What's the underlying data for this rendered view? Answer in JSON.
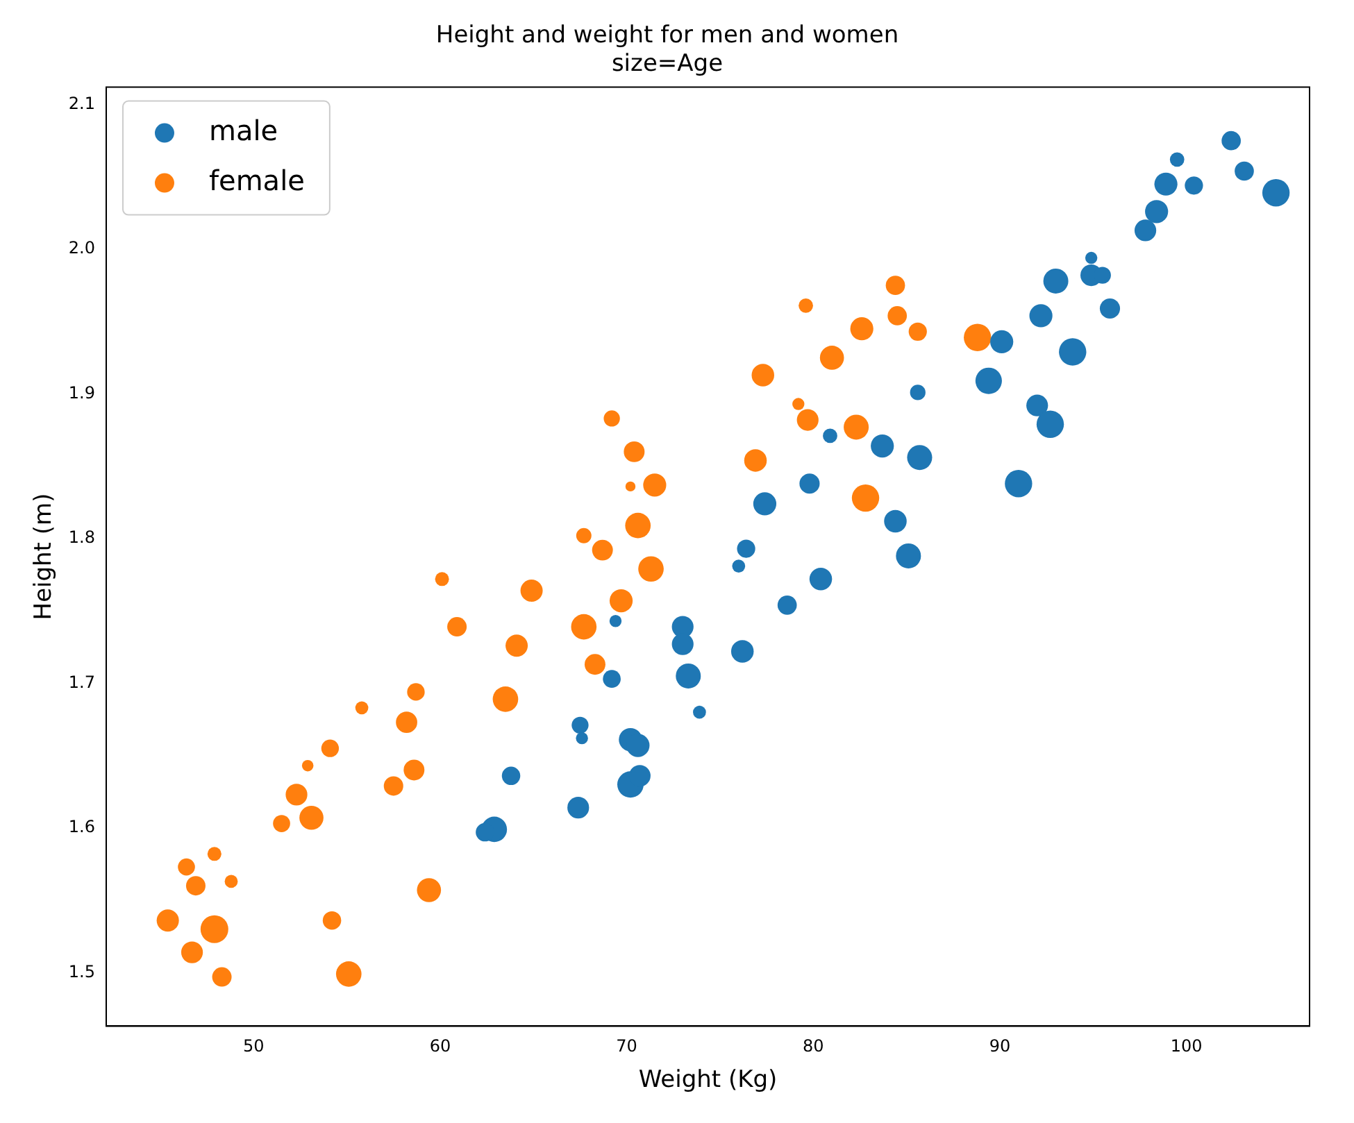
{
  "chart_data": {
    "type": "bubble",
    "title": "Height and weight for men and women",
    "subtitle": "size=Age",
    "xlabel": "Weight (Kg)",
    "ylabel": "Height (m)",
    "xlim": [
      42.1,
      106.6
    ],
    "xticks": [
      50,
      60,
      70,
      80,
      90,
      100
    ],
    "ylim": [
      1.463,
      2.112
    ],
    "yticks": [
      1.5,
      1.6,
      1.7,
      1.8,
      1.9,
      {
        "value": 2,
        "label": "2.0"
      },
      2.1
    ],
    "grid": false,
    "legend": "top left",
    "series": [
      {
        "name": "male",
        "color": "#1f77b4",
        "x": [
          102.4,
          99.5,
          103.1,
          104.8,
          98.9,
          100.4,
          98.4,
          97.8,
          94.9,
          94.9,
          95.5,
          93.0,
          92.2,
          95.9,
          90.1,
          93.9,
          89.4,
          85.6,
          92.0,
          92.7,
          80.9,
          83.7,
          85.7,
          91.0,
          79.8,
          77.4,
          84.4,
          85.1,
          76.4,
          76.0,
          80.4,
          78.6,
          69.4,
          73.0,
          73.0,
          76.2,
          69.2,
          73.3,
          73.9,
          67.5,
          67.6,
          70.2,
          70.6,
          70.2,
          70.7,
          63.8,
          67.4,
          62.9,
          62.4
        ],
        "values": [
          2.075,
          2.062,
          2.054,
          2.039,
          2.045,
          2.044,
          2.026,
          2.013,
          1.994,
          1.982,
          1.982,
          1.978,
          1.954,
          1.959,
          1.936,
          1.929,
          1.909,
          1.901,
          1.892,
          1.879,
          1.871,
          1.864,
          1.856,
          1.838,
          1.838,
          1.824,
          1.812,
          1.788,
          1.793,
          1.781,
          1.772,
          1.754,
          1.743,
          1.739,
          1.727,
          1.722,
          1.703,
          1.705,
          1.68,
          1.671,
          1.662,
          1.661,
          1.657,
          1.63,
          1.636,
          1.636,
          1.614,
          1.599,
          1.597
        ],
        "sizes": [
          0.48,
          0.27,
          0.48,
          0.97,
          0.69,
          0.43,
          0.69,
          0.61,
          0.19,
          0.61,
          0.37,
          0.81,
          0.69,
          0.53,
          0.69,
          0.97,
          0.91,
          0.31,
          0.61,
          0.97,
          0.27,
          0.69,
          0.81,
          0.97,
          0.53,
          0.69,
          0.66,
          0.81,
          0.43,
          0.22,
          0.66,
          0.48,
          0.19,
          0.61,
          0.61,
          0.66,
          0.41,
          0.81,
          0.22,
          0.37,
          0.19,
          0.7,
          0.7,
          0.9,
          0.6,
          0.44,
          0.61,
          0.84,
          0.44
        ]
      },
      {
        "name": "female",
        "color": "#ff7f0e",
        "x": [
          69.2,
          70.4,
          70.2,
          71.5,
          70.6,
          67.7,
          68.7,
          71.3,
          69.7,
          67.7,
          68.3,
          60.1,
          64.9,
          60.9,
          64.1,
          63.5,
          58.7,
          55.8,
          58.2,
          54.1,
          52.9,
          58.6,
          57.5,
          52.3,
          53.1,
          51.5,
          47.9,
          46.4,
          46.9,
          48.8,
          45.4,
          47.9,
          46.7,
          48.3,
          54.2,
          55.1,
          59.4,
          77.3,
          76.9,
          79.6,
          79.2,
          79.7,
          81.0,
          82.6,
          84.4,
          84.5,
          85.6,
          82.3,
          82.8,
          88.8
        ],
        "values": [
          1.883,
          1.86,
          1.836,
          1.837,
          1.809,
          1.802,
          1.792,
          1.779,
          1.757,
          1.739,
          1.713,
          1.772,
          1.764,
          1.739,
          1.726,
          1.689,
          1.694,
          1.683,
          1.673,
          1.655,
          1.643,
          1.64,
          1.629,
          1.623,
          1.607,
          1.603,
          1.582,
          1.573,
          1.56,
          1.563,
          1.536,
          1.53,
          1.514,
          1.497,
          1.536,
          1.499,
          1.557,
          1.913,
          1.854,
          1.961,
          1.893,
          1.882,
          1.925,
          1.945,
          1.975,
          1.954,
          1.943,
          1.877,
          1.828,
          1.939
        ],
        "sizes": [
          0.34,
          0.56,
          0.13,
          0.69,
          0.84,
          0.3,
          0.56,
          0.84,
          0.69,
          0.84,
          0.56,
          0.25,
          0.64,
          0.49,
          0.64,
          0.84,
          0.4,
          0.22,
          0.59,
          0.4,
          0.17,
          0.56,
          0.49,
          0.61,
          0.75,
          0.38,
          0.25,
          0.38,
          0.49,
          0.22,
          0.64,
          1.0,
          0.61,
          0.49,
          0.44,
          0.84,
          0.75,
          0.66,
          0.66,
          0.27,
          0.19,
          0.61,
          0.75,
          0.69,
          0.48,
          0.48,
          0.43,
          0.81,
          0.97,
          0.97
        ]
      }
    ]
  }
}
